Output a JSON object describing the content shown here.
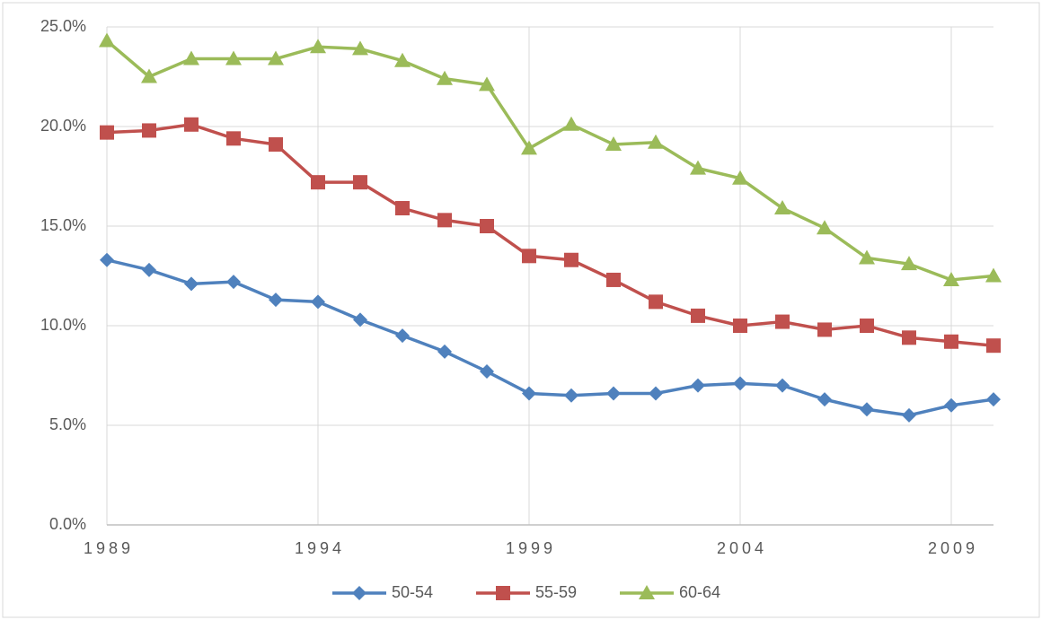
{
  "chart_data": {
    "type": "line",
    "x": [
      1989,
      1990,
      1991,
      1992,
      1993,
      1994,
      1995,
      1996,
      1997,
      1998,
      1999,
      2000,
      2001,
      2002,
      2003,
      2004,
      2005,
      2006,
      2007,
      2008,
      2009,
      2010
    ],
    "series": [
      {
        "name": "50-54",
        "color": "#4f81bd",
        "marker": "diamond",
        "values": [
          13.3,
          12.8,
          12.1,
          12.2,
          11.3,
          11.2,
          10.3,
          9.5,
          8.7,
          7.7,
          6.6,
          6.5,
          6.6,
          6.6,
          7.0,
          7.1,
          7.0,
          6.3,
          5.8,
          5.5,
          6.0,
          6.3
        ]
      },
      {
        "name": "55-59",
        "color": "#c0504d",
        "marker": "square",
        "values": [
          19.7,
          19.8,
          20.1,
          19.4,
          19.1,
          17.2,
          17.2,
          15.9,
          15.3,
          15.0,
          13.5,
          13.3,
          12.3,
          11.2,
          10.5,
          10.0,
          10.2,
          9.8,
          10.0,
          9.4,
          9.2,
          9.0
        ]
      },
      {
        "name": "60-64",
        "color": "#9bbb59",
        "marker": "triangle",
        "values": [
          24.3,
          22.5,
          23.4,
          23.4,
          23.4,
          24.0,
          23.9,
          23.3,
          22.4,
          22.1,
          18.9,
          20.1,
          19.1,
          19.2,
          17.9,
          17.4,
          15.9,
          14.9,
          13.4,
          13.1,
          12.3,
          12.5
        ]
      }
    ],
    "xlim": [
      1989,
      2010
    ],
    "xticks": [
      1989,
      1994,
      1999,
      2004,
      2009
    ],
    "ylim": [
      0,
      25
    ],
    "yticks": [
      {
        "value": 0,
        "label": "0.0%"
      },
      {
        "value": 5,
        "label": "5.0%"
      },
      {
        "value": 10,
        "label": "10.0%"
      },
      {
        "value": 15,
        "label": "15.0%"
      },
      {
        "value": 20,
        "label": "20.0%"
      },
      {
        "value": 25,
        "label": "25.0%"
      }
    ],
    "grid": true,
    "legend": "bottom"
  }
}
